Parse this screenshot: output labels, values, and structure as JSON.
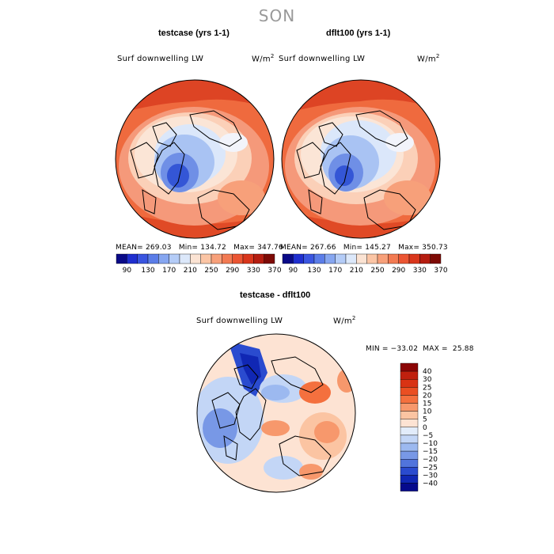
{
  "page": {
    "season": "SON"
  },
  "panels": [
    {
      "title": "testcase (yrs 1-1)",
      "field_label": "Surf downwelling LW",
      "units_base": "W/m",
      "units_exp": "2",
      "stats": {
        "mean_label": "MEAN=",
        "mean": "269.03",
        "min_label": "Min=",
        "min": "134.72",
        "max_label": "Max=",
        "max": "347.76"
      }
    },
    {
      "title": "dflt100 (yrs 1-1)",
      "field_label": "Surf downwelling LW",
      "units_base": "W/m",
      "units_exp": "2",
      "stats": {
        "mean_label": "MEAN=",
        "mean": "267.66",
        "min_label": "Min=",
        "min": "145.27",
        "max_label": "Max=",
        "max": "350.73"
      }
    },
    {
      "title": "testcase - dflt100",
      "field_label": "Surf downwelling LW",
      "units_base": "W/m",
      "units_exp": "2",
      "stats": {
        "min_label": "MIN =",
        "min": "−33.02",
        "max_label": "MAX =",
        "max": "25.88"
      }
    }
  ],
  "colorbar_top": {
    "tick_labels": [
      "90",
      "130",
      "170",
      "210",
      "250",
      "290",
      "330",
      "370"
    ],
    "colors": [
      "#0a0a87",
      "#1f2fcf",
      "#3a55e0",
      "#5b7de8",
      "#86a6f0",
      "#b4ccf7",
      "#dce8fa",
      "#fbe3d3",
      "#fbc5a5",
      "#f7a07a",
      "#f27a52",
      "#eb5533",
      "#d9361c",
      "#b51d10",
      "#7d0a05"
    ]
  },
  "colorbar_diff": {
    "tick_labels": [
      "40",
      "30",
      "25",
      "20",
      "15",
      "10",
      "5",
      "0",
      "−5",
      "−10",
      "−15",
      "−20",
      "−25",
      "−30",
      "−40"
    ],
    "colors": [
      "#8b0505",
      "#c0200e",
      "#d93314",
      "#ea4f22",
      "#f4703e",
      "#f7986c",
      "#fbc4a2",
      "#fde3d3",
      "#e2ecfa",
      "#c3d6f6",
      "#9cb9f0",
      "#7898e6",
      "#5174dc",
      "#2a4bcf",
      "#1027b4",
      "#060a8c"
    ]
  }
}
